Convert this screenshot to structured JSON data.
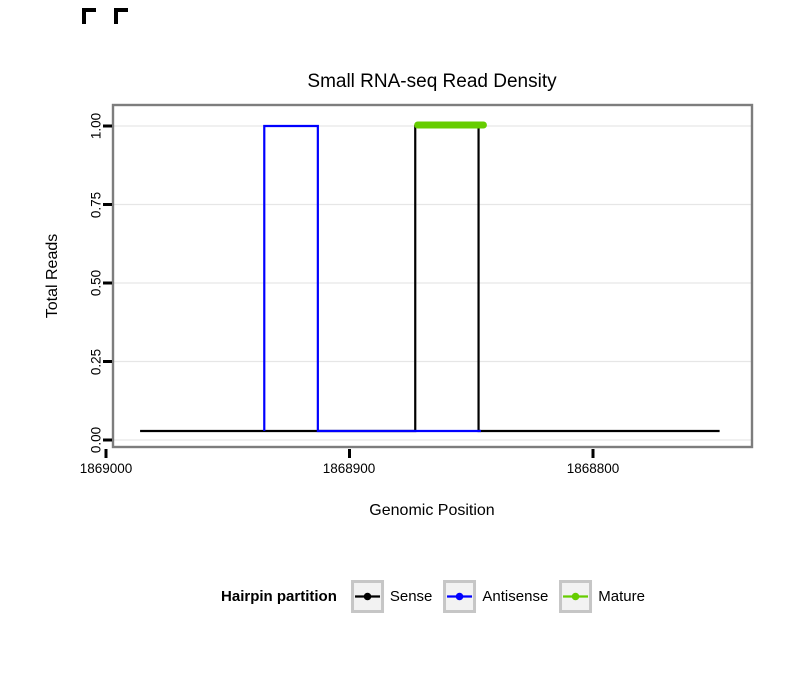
{
  "chart_data": {
    "type": "step",
    "title": "Small RNA-seq Read Density",
    "xlabel": "Genomic Position",
    "ylabel": "Total Reads",
    "x_axis_direction": "decreasing",
    "x_ticks": [
      "1869000",
      "1868900",
      "1868800"
    ],
    "x_tick_values": [
      1869000,
      1868900,
      1868800
    ],
    "y_ticks": [
      "1.00",
      "0.75",
      "0.50",
      "0.25",
      "0.00"
    ],
    "y_tick_values": [
      1.0,
      0.75,
      0.5,
      0.25,
      0.0
    ],
    "ylim": [
      0,
      1
    ],
    "grid": "horizontal-only",
    "baseline": {
      "from": 1868986,
      "to": 1868748,
      "value": 0
    },
    "series": [
      {
        "name": "Sense",
        "color": "#000000",
        "style": "step-outline",
        "region_start": 1868873,
        "region_end": 1868847,
        "height": 1.0
      },
      {
        "name": "Antisense",
        "color": "#0000FF",
        "style": "step-outline",
        "region_start": 1868935,
        "region_end": 1868913,
        "height": 1.0,
        "baseline_to": 1868846
      },
      {
        "name": "Mature",
        "color": "#66CD00",
        "style": "thick-segment",
        "region_start": 1868872,
        "region_end": 1868845,
        "height": 1.0
      }
    ],
    "legend": {
      "title": "Hairpin partition",
      "position": "bottom",
      "entries": [
        {
          "label": "Sense",
          "color": "#000000"
        },
        {
          "label": "Antisense",
          "color": "#0000FF"
        },
        {
          "label": "Mature",
          "color": "#66CD00"
        }
      ]
    },
    "panel_border_color": "#7d7d7d",
    "gridline_color": "#e6e6e6"
  }
}
